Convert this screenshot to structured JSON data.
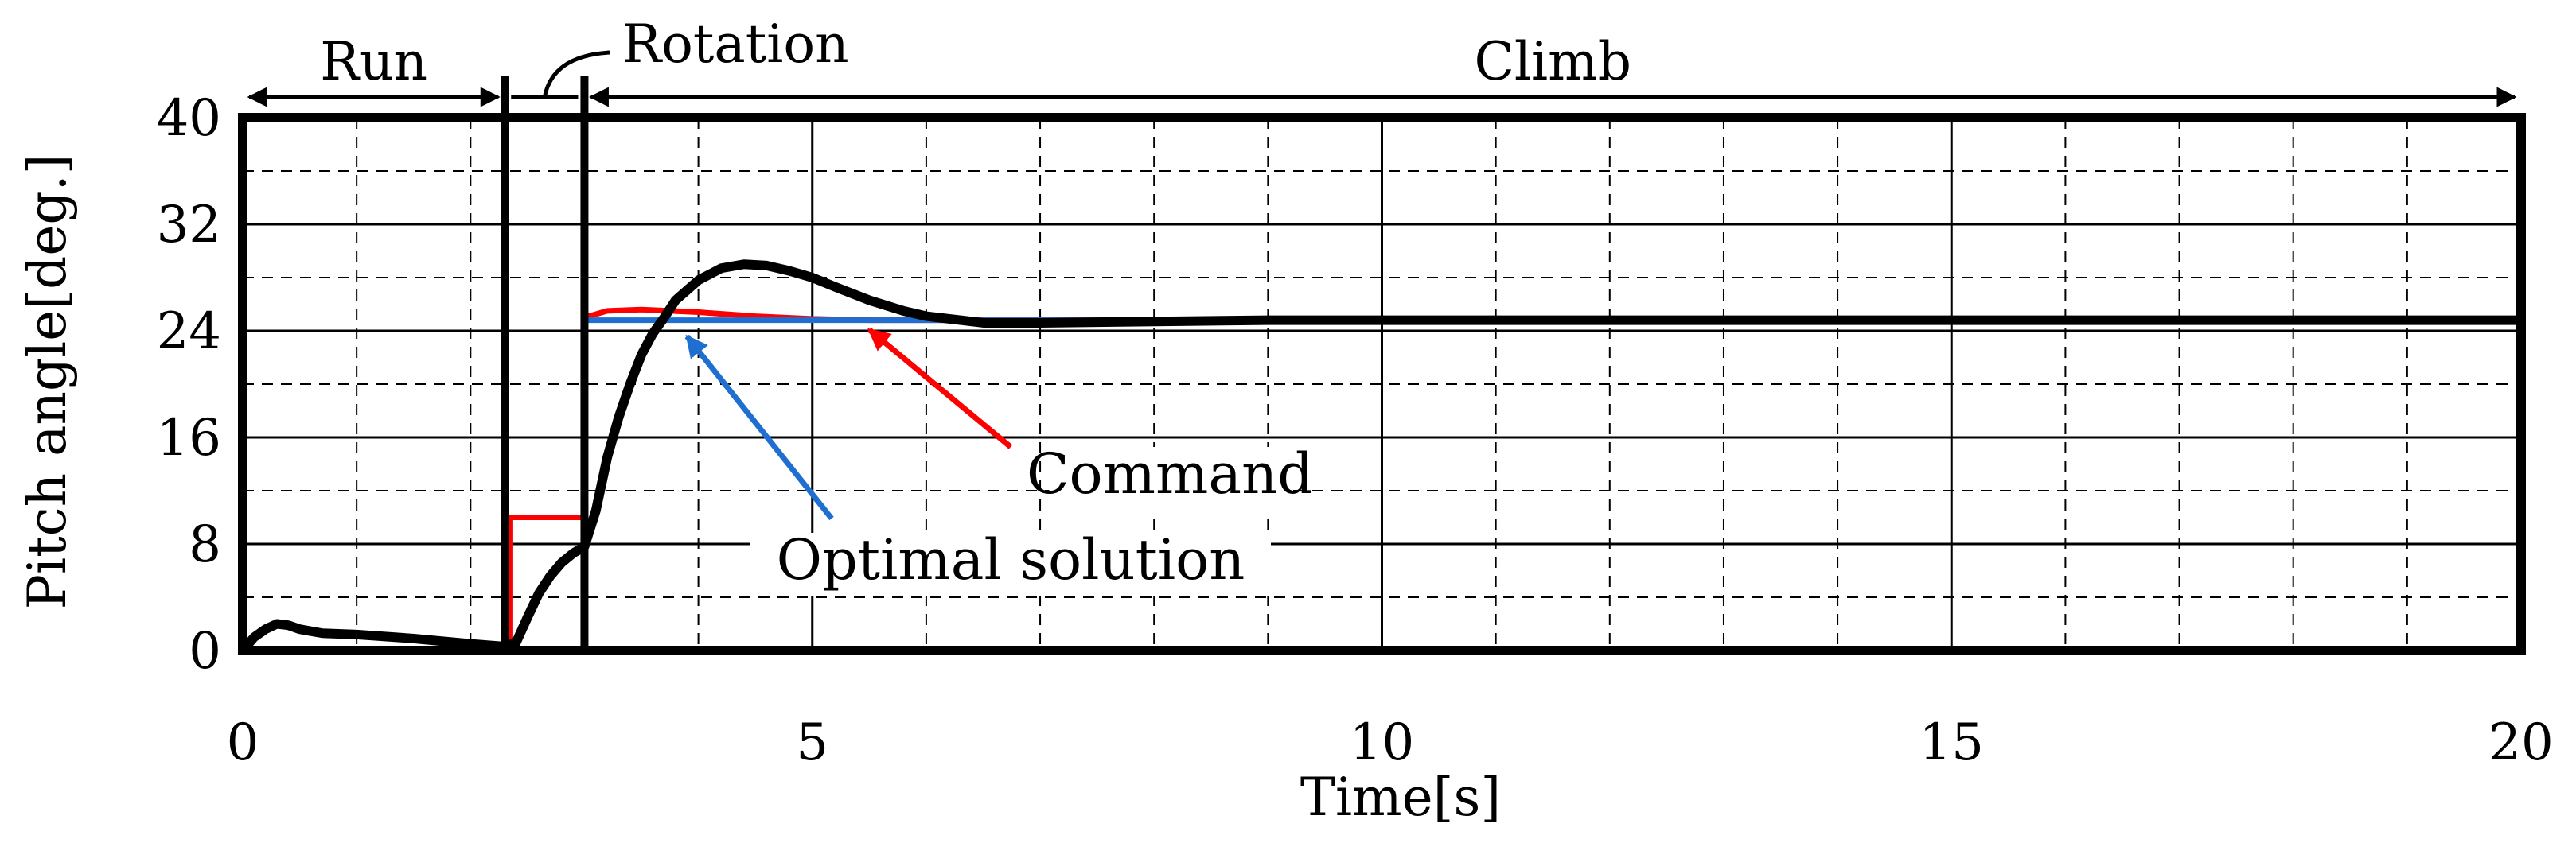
{
  "chart_data": {
    "type": "line",
    "xlabel": "Time[s]",
    "ylabel": "Pitch angle[deg.]",
    "xlim": [
      0,
      20
    ],
    "ylim": [
      0,
      40
    ],
    "xticks": [
      0,
      5,
      10,
      15,
      20
    ],
    "yticks": [
      0,
      8,
      16,
      24,
      32,
      40
    ],
    "xtick_labels": [
      "0",
      "5",
      "10",
      "15",
      "20"
    ],
    "ytick_labels": [
      "0",
      "8",
      "16",
      "24",
      "32",
      "40"
    ],
    "grid": true,
    "phases": [
      {
        "label": "Run",
        "start": 0,
        "end": 2.3
      },
      {
        "label": "Rotation",
        "start": 2.3,
        "end": 3.0
      },
      {
        "label": "Climb",
        "start": 3.0,
        "end": 20
      }
    ],
    "series": [
      {
        "name": "Command",
        "color": "#ff0000",
        "x": [
          0,
          2.35,
          2.35,
          3.0,
          3.0,
          3.2,
          3.5,
          4.0,
          4.5,
          5.0,
          5.5,
          6.0,
          20
        ],
        "y": [
          0,
          0,
          10,
          10,
          25,
          25.5,
          25.6,
          25.4,
          25.1,
          24.9,
          24.8,
          24.8,
          24.8
        ]
      },
      {
        "name": "Optimal solution",
        "color": "#1f6fd0",
        "x": [
          3.0,
          3.2,
          6.5,
          20
        ],
        "y": [
          24.8,
          24.8,
          24.8,
          24.8
        ]
      },
      {
        "name": "",
        "color": "#000000",
        "x": [
          0,
          0.1,
          0.2,
          0.3,
          0.4,
          0.5,
          0.7,
          1.0,
          1.5,
          2.0,
          2.3,
          2.4,
          2.5,
          2.6,
          2.7,
          2.8,
          2.9,
          3.0,
          3.1,
          3.2,
          3.3,
          3.4,
          3.5,
          3.6,
          3.7,
          3.8,
          4.0,
          4.2,
          4.4,
          4.6,
          4.8,
          5.0,
          5.2,
          5.5,
          5.8,
          6.0,
          6.3,
          6.5,
          7.0,
          8.0,
          9.0,
          20
        ],
        "y": [
          0,
          1.0,
          1.6,
          2.0,
          1.9,
          1.6,
          1.3,
          1.2,
          0.9,
          0.5,
          0.3,
          0.6,
          2.5,
          4.3,
          5.6,
          6.6,
          7.3,
          7.8,
          10.5,
          14.5,
          17.5,
          20.0,
          22.2,
          23.8,
          25.0,
          26.3,
          27.8,
          28.7,
          29.0,
          28.9,
          28.5,
          28.0,
          27.3,
          26.3,
          25.5,
          25.1,
          24.8,
          24.6,
          24.6,
          24.7,
          24.8,
          24.8
        ]
      }
    ],
    "annotations": [
      {
        "text": "Command",
        "color": "#ff0000",
        "points_to": [
          5.5,
          24.8
        ]
      },
      {
        "text": "Optimal solution",
        "color": "#1f6fd0",
        "points_to": [
          3.9,
          24.3
        ]
      }
    ]
  }
}
